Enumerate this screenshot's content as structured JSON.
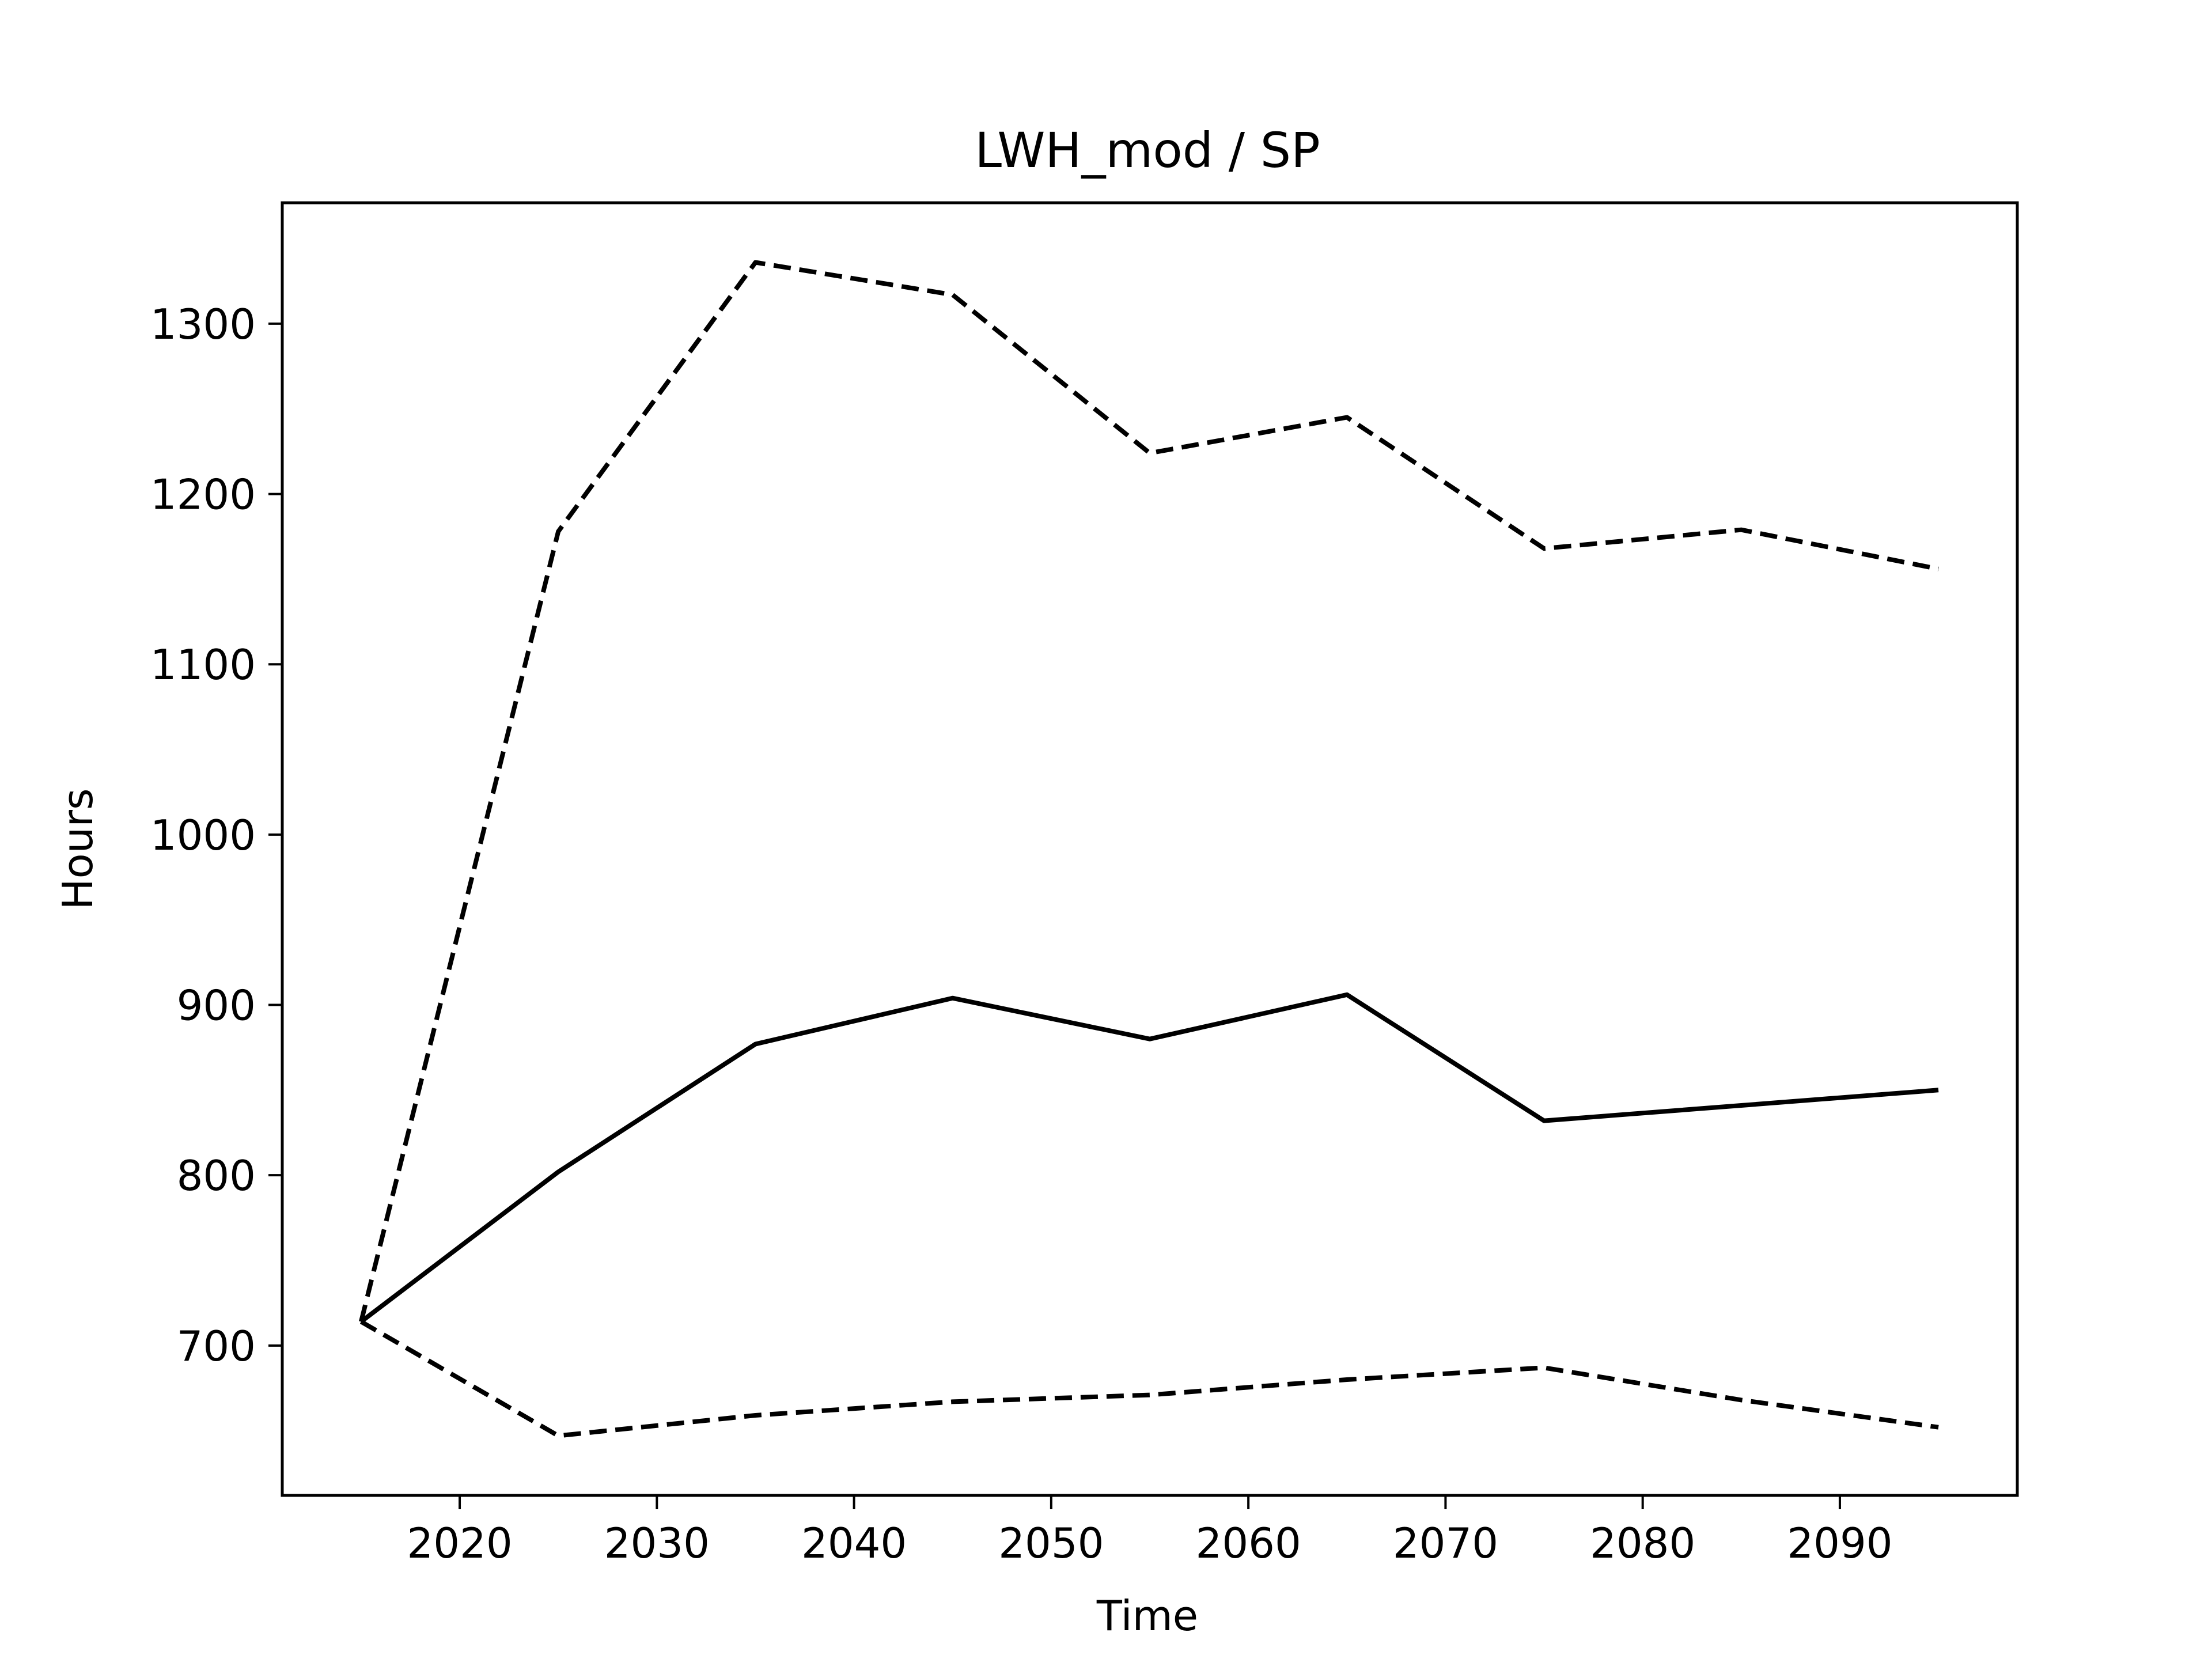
{
  "chart_data": {
    "type": "line",
    "title": "LWH_mod / SP",
    "xlabel": "Time",
    "ylabel": "Hours",
    "xlim": [
      2011,
      2099
    ],
    "ylim": [
      612,
      1371
    ],
    "xticks": [
      2020,
      2030,
      2040,
      2050,
      2060,
      2070,
      2080,
      2090
    ],
    "yticks": [
      700,
      800,
      900,
      1000,
      1100,
      1200,
      1300
    ],
    "grid": false,
    "x": [
      2015,
      2025,
      2035,
      2045,
      2055,
      2065,
      2075,
      2085,
      2095
    ],
    "series": [
      {
        "style": "dashed",
        "color": "#000000",
        "values": [
          714,
          1178,
          1336,
          1317,
          1224,
          1245,
          1168,
          1179,
          1156
        ]
      },
      {
        "style": "solid",
        "color": "#000000",
        "values": [
          714,
          802,
          877,
          904,
          880,
          906,
          832,
          841,
          850
        ]
      },
      {
        "style": "dashed",
        "color": "#000000",
        "values": [
          714,
          647,
          659,
          667,
          671,
          680,
          687,
          668,
          652
        ]
      }
    ]
  }
}
